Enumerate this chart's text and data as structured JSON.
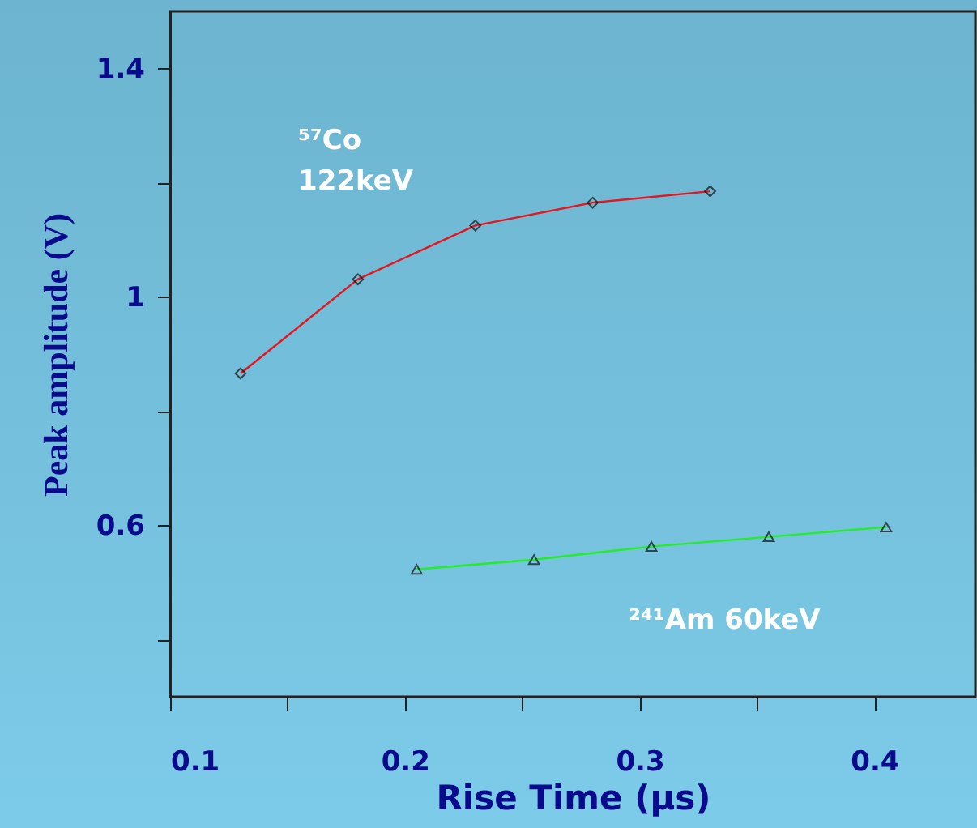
{
  "chart_data": {
    "type": "line",
    "xlabel": "Rise Time (µs)",
    "ylabel": "Peak  amplitude (V)",
    "xlim": [
      0.1,
      0.443
    ],
    "xticks": [
      0.1,
      {
        "value": 0.15,
        "label": null
      },
      0.2,
      {
        "value": 0.25,
        "label": null
      },
      0.3,
      {
        "value": 0.35,
        "label": null
      },
      0.4
    ],
    "ylim": [
      0.3,
      1.5
    ],
    "yticks": [
      {
        "value": 0.4,
        "label": null
      },
      0.6,
      {
        "value": 0.8,
        "label": null
      },
      1,
      {
        "value": 1.2,
        "label": null
      },
      1.4
    ],
    "grid": false,
    "line_style": "solid",
    "series": [
      {
        "color": "#e8141e",
        "marker": "diamond",
        "x": [
          0.13,
          0.18,
          0.23,
          0.28,
          0.33
        ],
        "values": [
          0.866,
          1.031,
          1.125,
          1.165,
          1.185
        ]
      },
      {
        "color": "#22ee22",
        "marker": "triangle",
        "x": [
          0.205,
          0.255,
          0.305,
          0.355,
          0.405
        ],
        "values": [
          0.523,
          0.54,
          0.563,
          0.58,
          0.597
        ]
      }
    ],
    "annotations": [
      "⁵⁷Co",
      "122keV",
      "²⁴¹Am  60keV"
    ]
  }
}
